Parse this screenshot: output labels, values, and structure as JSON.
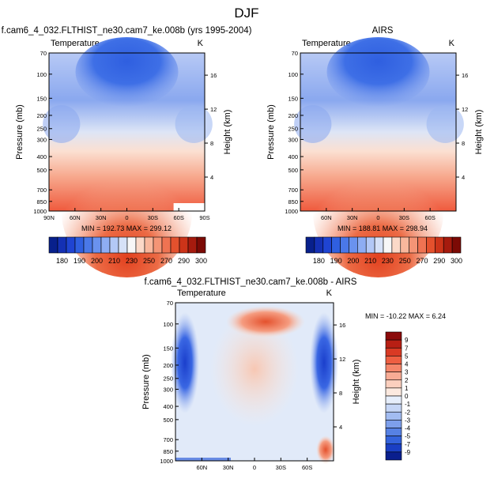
{
  "page_title": "DJF",
  "chart_data": [
    {
      "type": "heatmap",
      "title": "f.cam6_4_032.FLTHIST_ne30.cam7_ke.008b (yrs 1995-2004)",
      "subtitle_left": "Temperature",
      "subtitle_right": "K",
      "ylabel": "Pressure (mb)",
      "ylabel_right": "Height (km)",
      "xticks": [
        "90N",
        "60N",
        "30N",
        "0",
        "30S",
        "60S",
        "90S"
      ],
      "yticks": [
        "70",
        "100",
        "150",
        "200",
        "250",
        "300",
        "400",
        "500",
        "700",
        "850",
        "1000"
      ],
      "height_ticks": [
        "16",
        "12",
        "8",
        "4"
      ],
      "min_max": "MIN = 192.73   MAX = 299.12",
      "colorbar_levels": [
        "180",
        "190",
        "200",
        "210",
        "230",
        "250",
        "270",
        "290",
        "300"
      ],
      "value_range": [
        180,
        300
      ]
    },
    {
      "type": "heatmap",
      "title": "AIRS",
      "subtitle_left": "Temperature",
      "subtitle_right": "K",
      "ylabel": "Pressure (mb)",
      "ylabel_right": "Height (km)",
      "xticks": [
        "60N",
        "30N",
        "0",
        "30S",
        "60S"
      ],
      "yticks": [
        "70",
        "100",
        "150",
        "200",
        "250",
        "300",
        "400",
        "500",
        "700",
        "850",
        "1000"
      ],
      "height_ticks": [
        "16",
        "12",
        "8",
        "4"
      ],
      "min_max": "MIN = 188.81   MAX = 298.94",
      "colorbar_levels": [
        "180",
        "190",
        "200",
        "210",
        "230",
        "250",
        "270",
        "290",
        "300"
      ],
      "value_range": [
        180,
        300
      ]
    },
    {
      "type": "heatmap",
      "title": "f.cam6_4_032.FLTHIST_ne30.cam7_ke.008b - AIRS",
      "subtitle_left": "Temperature",
      "subtitle_right": "K",
      "ylabel": "Pressure (mb)",
      "ylabel_right": "Height (km)",
      "xticks": [
        "60N",
        "30N",
        "0",
        "30S",
        "60S"
      ],
      "yticks": [
        "70",
        "100",
        "150",
        "200",
        "250",
        "300",
        "400",
        "500",
        "700",
        "850",
        "1000"
      ],
      "height_ticks": [
        "16",
        "12",
        "8",
        "4"
      ],
      "min_max": "MIN = -10.22   MAX =   6.24",
      "colorbar_levels": [
        "9",
        "7",
        "5",
        "4",
        "3",
        "2",
        "1",
        "0",
        "-1",
        "-2",
        "-3",
        "-4",
        "-5",
        "-7",
        "-9"
      ],
      "value_range": [
        -10.22,
        6.24
      ]
    }
  ]
}
